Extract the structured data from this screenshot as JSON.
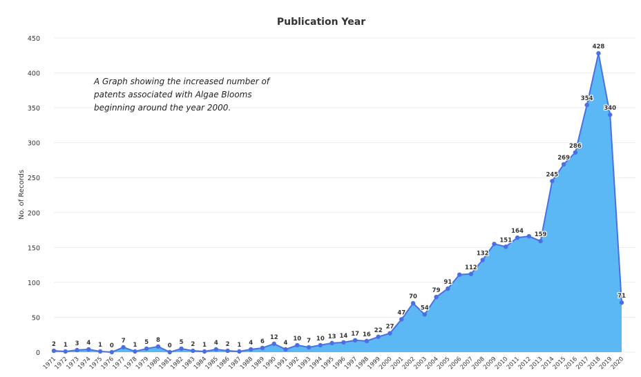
{
  "chart_data": {
    "type": "area",
    "title": "Publication Year",
    "xlabel": "",
    "ylabel": "No. of Records",
    "ylim": [
      0,
      450
    ],
    "yticks": [
      0,
      50,
      100,
      150,
      200,
      250,
      300,
      350,
      400,
      450
    ],
    "grid": true,
    "legend": "none",
    "colors": {
      "fill": "#5bb8f5",
      "line": "#4a6fe3",
      "marker": "#4a6fe3"
    },
    "annotation": [
      "A Graph showing the increased number of",
      "patents associated with  Algae Blooms",
      "beginning around the year 2000."
    ],
    "categories": [
      "1971",
      "1972",
      "1973",
      "1974",
      "1975",
      "1976",
      "1977",
      "1978",
      "1979",
      "1980",
      "1981",
      "1982",
      "1983",
      "1984",
      "1985",
      "1986",
      "1987",
      "1988",
      "1989",
      "1990",
      "1991",
      "1992",
      "1993",
      "1994",
      "1995",
      "1996",
      "1997",
      "1998",
      "1999",
      "2000",
      "2001",
      "2002",
      "2003",
      "2004",
      "2005",
      "2006",
      "2007",
      "2008",
      "2009",
      "2010",
      "2011",
      "2012",
      "2013",
      "2014",
      "2015",
      "2016",
      "2017",
      "2018",
      "2019",
      "2020"
    ],
    "values": [
      2,
      1,
      3,
      4,
      1,
      0,
      7,
      1,
      5,
      8,
      0,
      5,
      2,
      1,
      4,
      2,
      1,
      4,
      6,
      12,
      4,
      10,
      7,
      10,
      13,
      14,
      17,
      16,
      22,
      27,
      47,
      70,
      54,
      79,
      91,
      111,
      112,
      132,
      155,
      151,
      164,
      166,
      159,
      245,
      269,
      286,
      354,
      428,
      340,
      71
    ],
    "point_labels": [
      "2",
      "1",
      "3",
      "4",
      "1",
      "0",
      "7",
      "1",
      "5",
      "8",
      "0",
      "5",
      "2",
      "1",
      "4",
      "2",
      "1",
      "4",
      "6",
      "12",
      "4",
      "10",
      "7",
      "10",
      "13",
      "14",
      "17",
      "16",
      "22",
      "27",
      "47",
      "70",
      "54",
      "79",
      "91",
      "",
      "112",
      "132",
      "",
      "151",
      "164",
      "",
      "159",
      "245",
      "269",
      "286",
      "354",
      "428",
      "340",
      "71"
    ]
  }
}
